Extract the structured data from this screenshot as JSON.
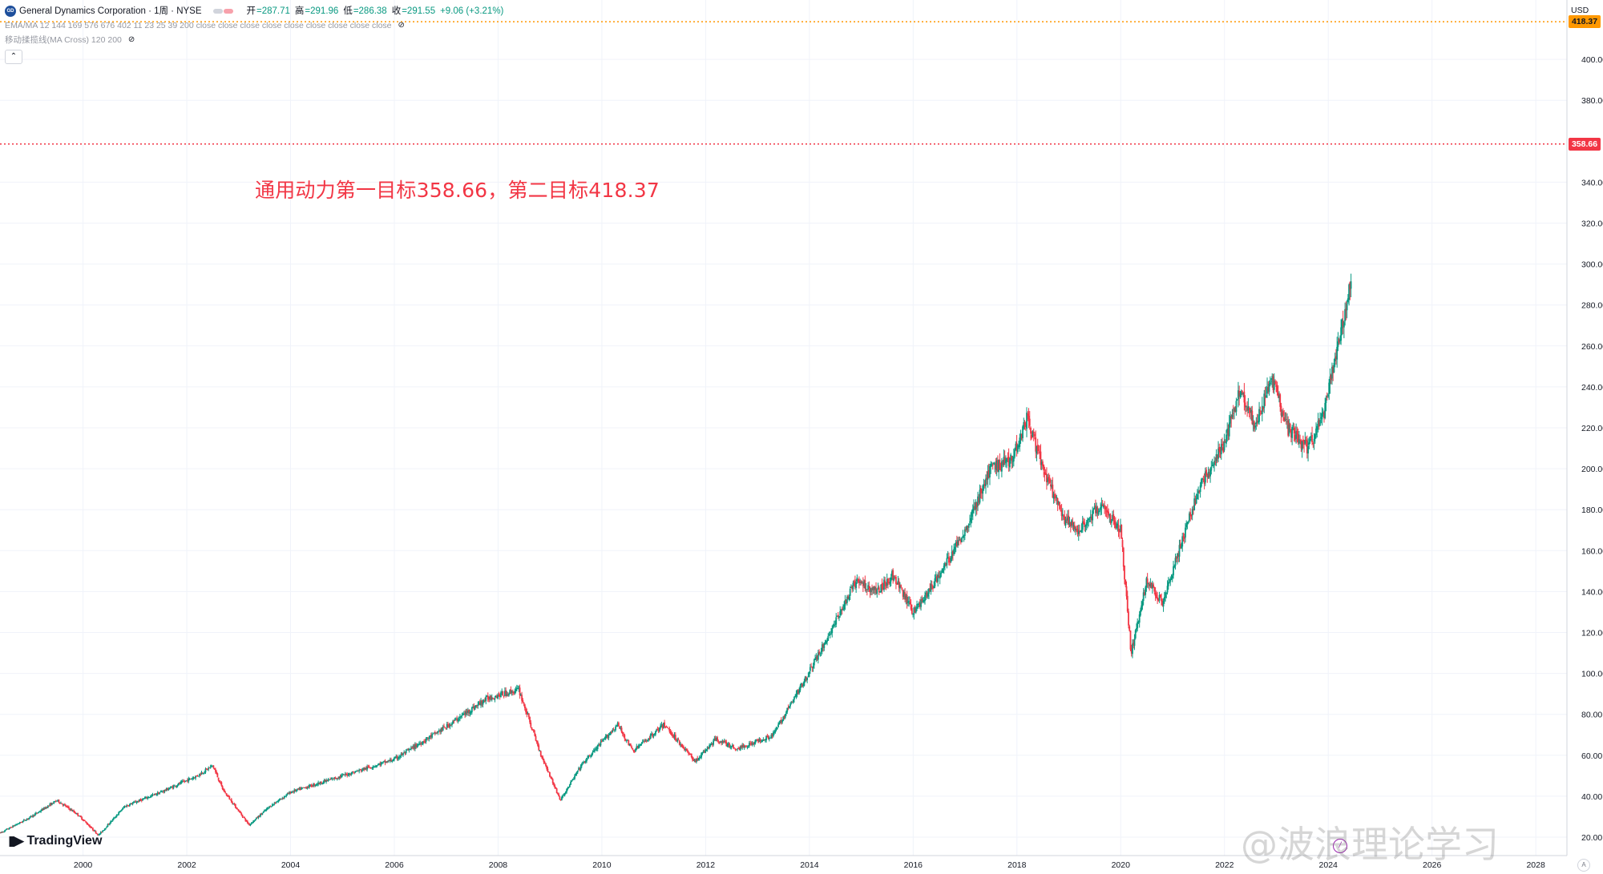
{
  "header": {
    "symbol_icon": "GD",
    "title": "General Dynamics Corporation · 1周 · NYSE",
    "ohlc": [
      {
        "label": "开",
        "value": "=287.71"
      },
      {
        "label": "高",
        "value": "=291.96"
      },
      {
        "label": "低",
        "value": "=286.38"
      },
      {
        "label": "收",
        "value": "=291.55"
      }
    ],
    "change": "+9.06 (+3.21%)",
    "indicator_1": "EMA/MA 12 144 169 576 676 402 11 23 25 39 200 close close close close close close close close close",
    "indicator_2": "移动揉揽线(MA Cross)  120 200",
    "collapse_icon": "chevron-up-icon"
  },
  "annotation": "通用动力第一目标358.66，第二目标418.37",
  "branding": "TradingView",
  "watermark": "@波浪理论学习",
  "currency": "USD",
  "price_tags": [
    {
      "label": "418.37",
      "bg": "#ff9800",
      "color": "#131722"
    },
    {
      "label": "358.66",
      "bg": "#f23645",
      "color": "#ffffff"
    }
  ],
  "colors": {
    "up": "#089981",
    "down": "#f23645",
    "target1_line": "#f23645",
    "target2_line": "#ff9800",
    "grid": "#f0f3fa"
  },
  "chart_data": {
    "type": "candlestick",
    "title": "General Dynamics Corporation · 1周 · NYSE",
    "xlabel": "",
    "ylabel": "USD",
    "x_ticks": [
      "2000",
      "2002",
      "2004",
      "2006",
      "2008",
      "2010",
      "2012",
      "2014",
      "2016",
      "2018",
      "2020",
      "2022",
      "2024",
      "2026",
      "2028"
    ],
    "y_ticks": [
      "20.00",
      "40.00",
      "60.00",
      "80.00",
      "100.00",
      "120.00",
      "140.00",
      "160.00",
      "180.00",
      "200.00",
      "220.00",
      "240.00",
      "260.00",
      "280.00",
      "300.00",
      "320.00",
      "340.00",
      "380.00",
      "400.00"
    ],
    "ylim": [
      11,
      429
    ],
    "xlim": [
      1998.4,
      2028.6
    ],
    "horizontal_lines": [
      {
        "value": 358.66,
        "label": "358.66",
        "style": "dotted",
        "color": "#f23645"
      },
      {
        "value": 418.37,
        "label": "418.37",
        "style": "dotted",
        "color": "#ff9800"
      }
    ],
    "last_close": 291.55,
    "price_path": [
      [
        1998.4,
        22
      ],
      [
        1999.0,
        30
      ],
      [
        1999.5,
        38
      ],
      [
        1999.9,
        31
      ],
      [
        2000.3,
        21
      ],
      [
        2000.8,
        35
      ],
      [
        2001.5,
        42
      ],
      [
        2002.2,
        50
      ],
      [
        2002.5,
        55
      ],
      [
        2002.7,
        43
      ],
      [
        2003.2,
        26
      ],
      [
        2003.6,
        35
      ],
      [
        2004.0,
        42
      ],
      [
        2005.0,
        50
      ],
      [
        2006.0,
        58
      ],
      [
        2007.0,
        74
      ],
      [
        2007.8,
        88
      ],
      [
        2008.4,
        92
      ],
      [
        2008.8,
        62
      ],
      [
        2009.2,
        38
      ],
      [
        2009.6,
        55
      ],
      [
        2010.3,
        75
      ],
      [
        2010.6,
        62
      ],
      [
        2011.2,
        75
      ],
      [
        2011.8,
        57
      ],
      [
        2012.2,
        68
      ],
      [
        2012.6,
        63
      ],
      [
        2013.3,
        70
      ],
      [
        2013.8,
        92
      ],
      [
        2014.3,
        115
      ],
      [
        2014.9,
        145
      ],
      [
        2015.3,
        140
      ],
      [
        2015.6,
        148
      ],
      [
        2016.0,
        130
      ],
      [
        2016.3,
        140
      ],
      [
        2016.6,
        152
      ],
      [
        2017.0,
        170
      ],
      [
        2017.5,
        200
      ],
      [
        2017.9,
        205
      ],
      [
        2018.2,
        225
      ],
      [
        2018.5,
        200
      ],
      [
        2018.9,
        175
      ],
      [
        2019.2,
        170
      ],
      [
        2019.6,
        182
      ],
      [
        2020.0,
        170
      ],
      [
        2020.2,
        110
      ],
      [
        2020.5,
        145
      ],
      [
        2020.8,
        135
      ],
      [
        2021.0,
        150
      ],
      [
        2021.5,
        190
      ],
      [
        2022.0,
        212
      ],
      [
        2022.3,
        240
      ],
      [
        2022.6,
        220
      ],
      [
        2022.9,
        245
      ],
      [
        2023.2,
        220
      ],
      [
        2023.6,
        210
      ],
      [
        2023.9,
        225
      ],
      [
        2024.2,
        262
      ],
      [
        2024.45,
        291.55
      ]
    ]
  }
}
